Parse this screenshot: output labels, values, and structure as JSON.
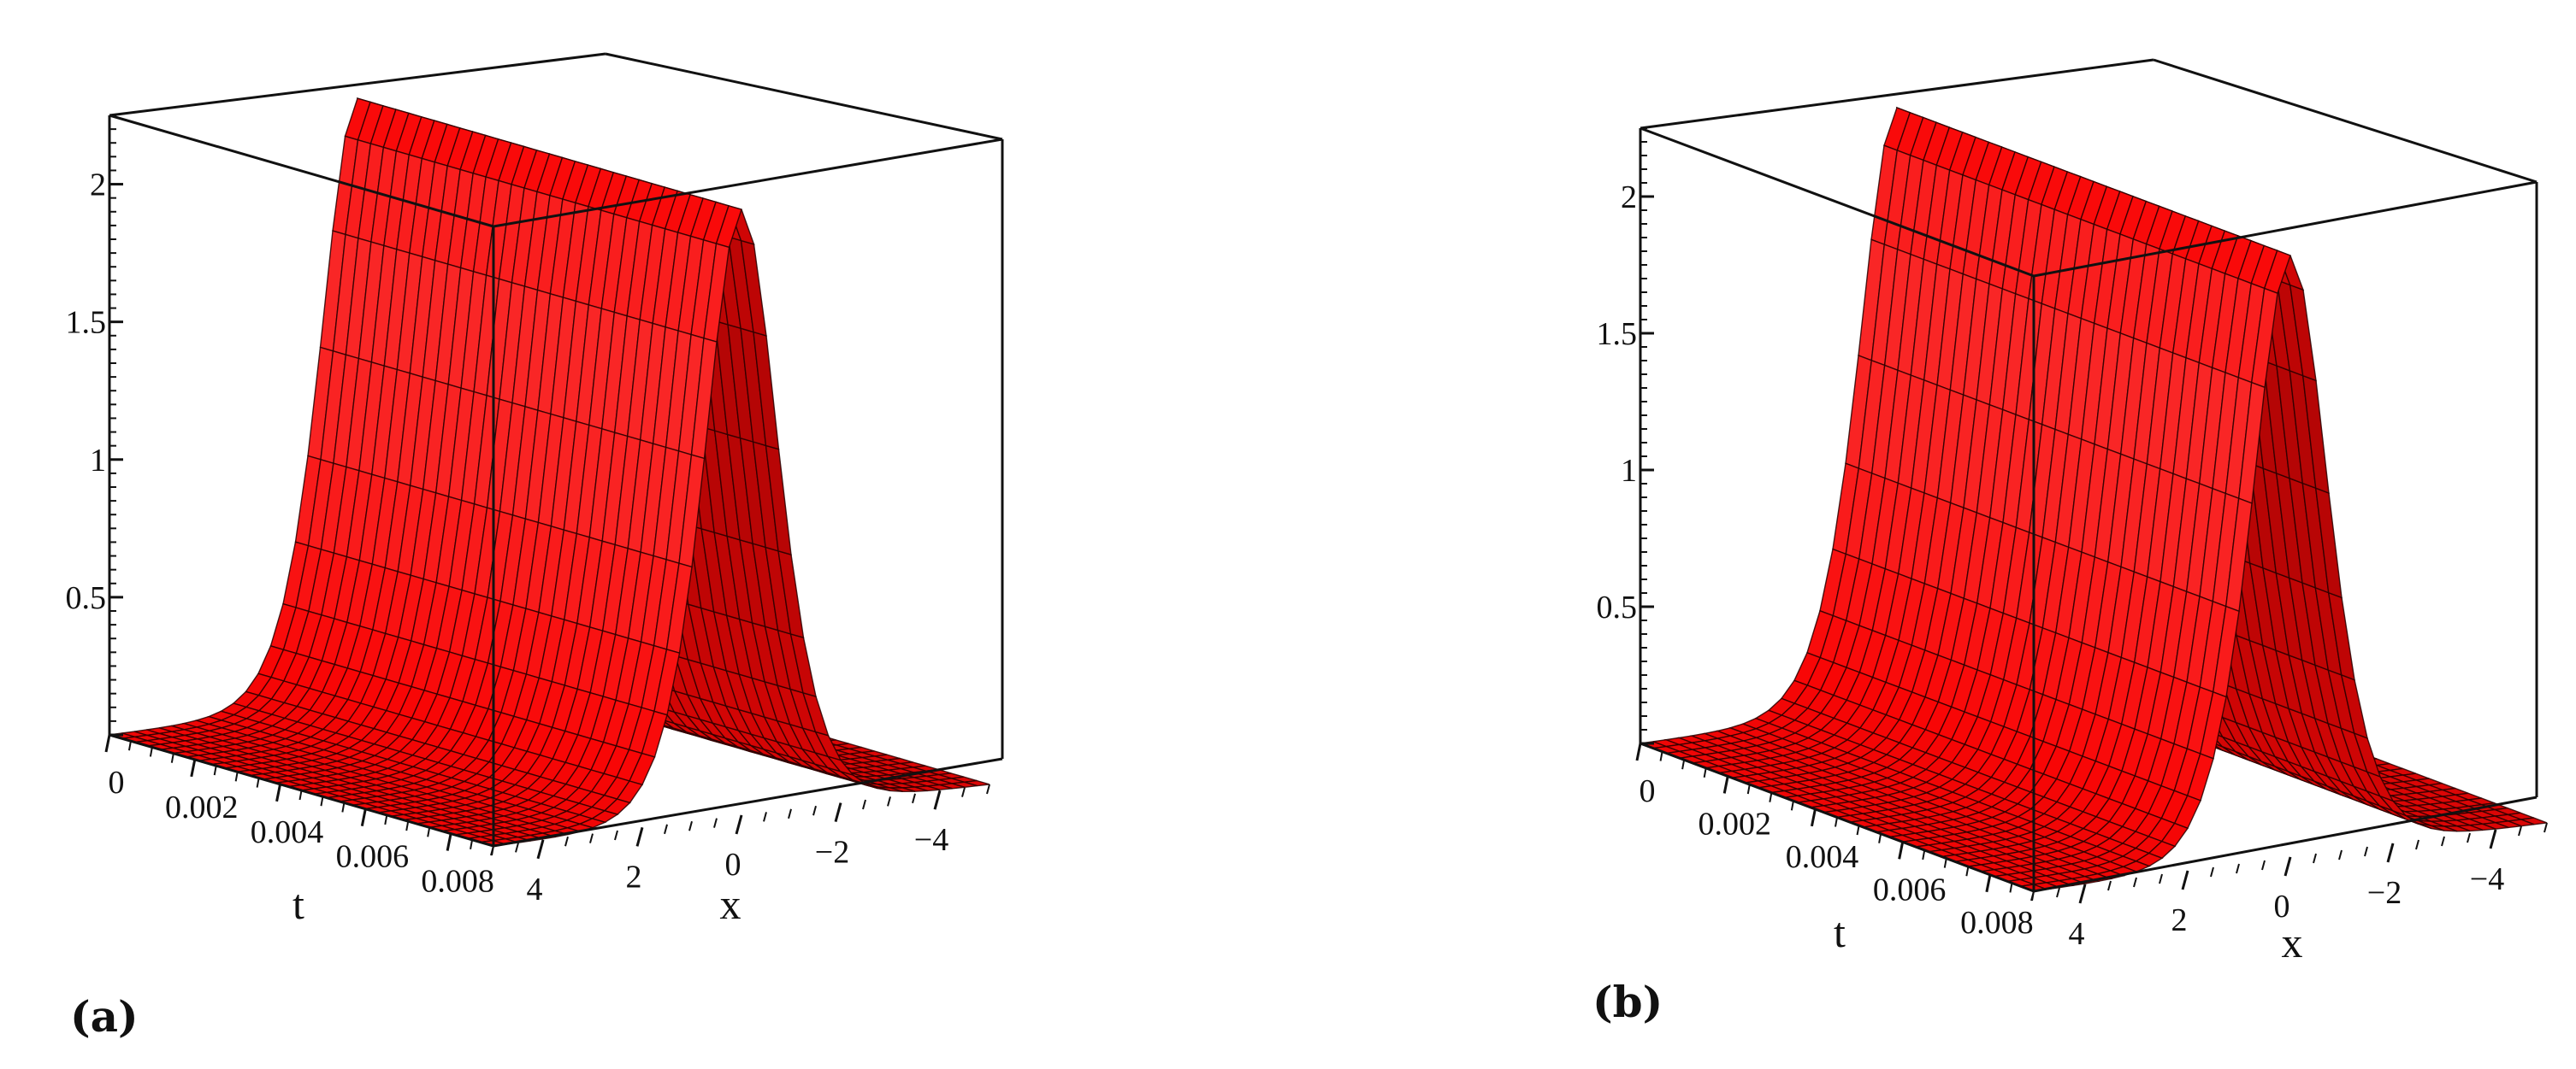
{
  "chart_data": [
    {
      "panel_label": "(a)",
      "type": "surface3d",
      "surface_color": "#ff2020",
      "mesh_color": "#2a0000",
      "x_label": "x",
      "t_label": "t",
      "x_ticks": [
        "4",
        "2",
        "0",
        "−2",
        "−4"
      ],
      "x_tick_values": [
        4,
        2,
        0,
        -2,
        -4
      ],
      "t_ticks": [
        "0",
        "0.002",
        "0.004",
        "0.006",
        "0.008"
      ],
      "t_tick_values": [
        0,
        0.002,
        0.004,
        0.006,
        0.008
      ],
      "z_ticks": [
        "0.5",
        "1",
        "1.5",
        "2"
      ],
      "z_tick_values": [
        0.5,
        1,
        1.5,
        2
      ],
      "x_range": [
        -5,
        5
      ],
      "t_range": [
        0,
        0.009
      ],
      "z_range": [
        0,
        2.25
      ],
      "peak_height": 2.2,
      "peak_center_x": 0,
      "peak_width_param": 1.0
    },
    {
      "panel_label": "(b)",
      "type": "surface3d",
      "surface_color": "#ff2020",
      "mesh_color": "#2a0000",
      "x_label": "x",
      "t_label": "t",
      "x_ticks": [
        "4",
        "2",
        "0",
        "−2",
        "−4"
      ],
      "x_tick_values": [
        4,
        2,
        0,
        -2,
        -4
      ],
      "t_ticks": [
        "0",
        "0.002",
        "0.004",
        "0.006",
        "0.008"
      ],
      "t_tick_values": [
        0,
        0.002,
        0.004,
        0.006,
        0.008
      ],
      "z_ticks": [
        "0.5",
        "1",
        "1.5",
        "2"
      ],
      "z_tick_values": [
        0.5,
        1,
        1.5,
        2
      ],
      "x_range": [
        -5,
        5
      ],
      "t_range": [
        0,
        0.009
      ],
      "z_range": [
        0,
        2.25
      ],
      "peak_height": 2.2,
      "peak_center_x": 0,
      "peak_width_param": 1.0
    }
  ]
}
